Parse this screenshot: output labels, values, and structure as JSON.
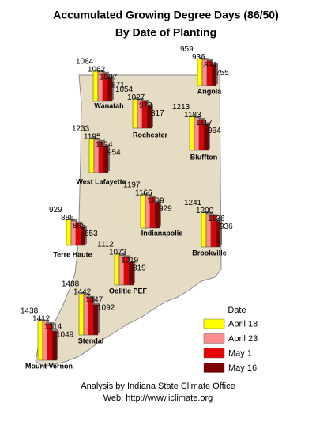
{
  "title": "Accumulated Growing Degree Days (86/50)",
  "subtitle": "By Date of Planting",
  "legend": {
    "title": "Date",
    "series": [
      {
        "name": "April 18",
        "color": "#ffff00"
      },
      {
        "name": "April 23",
        "color": "#ff8c8c"
      },
      {
        "name": "May 1",
        "color": "#e80000"
      },
      {
        "name": "May 16",
        "color": "#7a0000"
      }
    ]
  },
  "stations": [
    {
      "name": "Wanatah",
      "values": [
        1084,
        1062,
        1007,
        871
      ]
    },
    {
      "name": "Angola",
      "values": [
        959,
        936,
        891,
        755
      ]
    },
    {
      "name": "Rochester",
      "values": [
        1054,
        1027,
        972,
        817
      ]
    },
    {
      "name": "Bluffton",
      "values": [
        1213,
        1183,
        1117,
        964
      ]
    },
    {
      "name": "West Lafayette",
      "values": [
        1233,
        1195,
        1124,
        954
      ]
    },
    {
      "name": "Indianapolis",
      "values": [
        1197,
        1166,
        1109,
        929
      ]
    },
    {
      "name": "Terre Haute",
      "values": [
        929,
        886,
        808,
        653
      ]
    },
    {
      "name": "Brookville",
      "values": [
        1241,
        1200,
        1136,
        936
      ]
    },
    {
      "name": "Oolitic PEF",
      "values": [
        1112,
        1073,
        1019,
        819
      ]
    },
    {
      "name": "Stendal",
      "values": [
        1488,
        1442,
        1347,
        1092
      ]
    },
    {
      "name": "Mount Vernon",
      "values": [
        1438,
        1412,
        1314,
        1049
      ]
    }
  ],
  "footer": [
    "Analysis by Indiana State Climate Office",
    "Web: http://www.iclimate.org"
  ]
}
